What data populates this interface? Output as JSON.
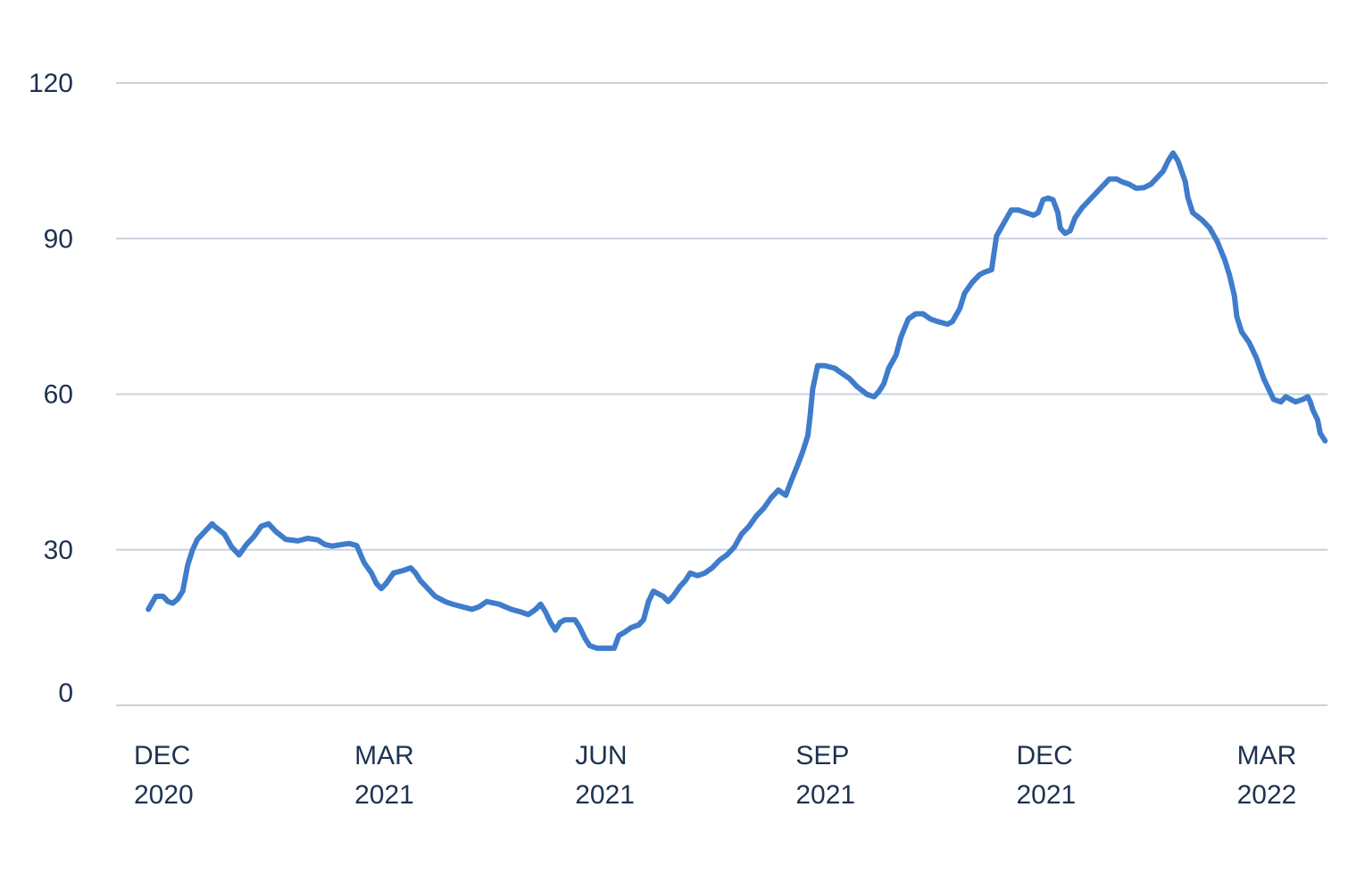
{
  "chart_data": {
    "type": "line",
    "title": "",
    "xlabel": "",
    "ylabel": "",
    "ylim": [
      0,
      120
    ],
    "yticks": [
      0,
      30,
      60,
      90,
      120
    ],
    "grid": true,
    "xticks": [
      {
        "x": 0,
        "line1": "DEC",
        "line2": "2020"
      },
      {
        "x": 90,
        "line1": "MAR",
        "line2": "2021"
      },
      {
        "x": 180,
        "line1": "JUN",
        "line2": "2021"
      },
      {
        "x": 270,
        "line1": "SEP",
        "line2": "2021"
      },
      {
        "x": 360,
        "line1": "DEC",
        "line2": "2021"
      },
      {
        "x": 450,
        "line1": "MAR",
        "line2": "2022"
      }
    ],
    "xlim": [
      0,
      484
    ],
    "series": [
      {
        "color": "#3f7ccb",
        "points": [
          [
            3,
            18.5
          ],
          [
            6,
            21
          ],
          [
            9,
            21
          ],
          [
            11,
            20
          ],
          [
            13,
            19.7
          ],
          [
            15,
            20.5
          ],
          [
            17,
            22
          ],
          [
            19,
            27
          ],
          [
            21,
            30
          ],
          [
            23,
            32
          ],
          [
            26,
            33.5
          ],
          [
            29,
            35
          ],
          [
            30,
            34.5
          ],
          [
            34,
            33
          ],
          [
            37,
            30.5
          ],
          [
            40,
            29
          ],
          [
            43,
            31
          ],
          [
            46,
            32.5
          ],
          [
            49,
            34.5
          ],
          [
            52,
            35
          ],
          [
            55,
            33.5
          ],
          [
            59,
            32
          ],
          [
            64,
            31.7
          ],
          [
            68,
            32.2
          ],
          [
            72,
            31.9
          ],
          [
            75,
            31
          ],
          [
            78,
            30.7
          ],
          [
            82,
            31
          ],
          [
            85,
            31.2
          ],
          [
            88,
            30.8
          ],
          [
            91,
            27.5
          ],
          [
            94,
            25.5
          ],
          [
            96,
            23.5
          ],
          [
            98,
            22.5
          ],
          [
            100,
            23.5
          ],
          [
            103,
            25.5
          ],
          [
            107,
            26
          ],
          [
            110,
            26.5
          ],
          [
            112,
            25.5
          ],
          [
            114,
            24
          ],
          [
            117,
            22.5
          ],
          [
            120,
            21
          ],
          [
            124,
            20
          ],
          [
            127,
            19.5
          ],
          [
            131,
            19
          ],
          [
            135,
            18.5
          ],
          [
            138,
            19
          ],
          [
            141,
            20
          ],
          [
            146,
            19.5
          ],
          [
            151,
            18.5
          ],
          [
            155,
            18
          ],
          [
            158,
            17.5
          ],
          [
            161,
            18.5
          ],
          [
            163,
            19.5
          ],
          [
            165,
            18
          ],
          [
            167,
            16
          ],
          [
            169,
            14.5
          ],
          [
            171,
            16
          ],
          [
            173,
            16.5
          ],
          [
            177,
            16.5
          ],
          [
            179,
            15
          ],
          [
            181,
            13
          ],
          [
            183,
            11.5
          ],
          [
            186,
            11
          ],
          [
            190,
            11
          ],
          [
            193,
            11
          ],
          [
            195,
            13.5
          ],
          [
            197,
            14
          ],
          [
            200,
            15
          ],
          [
            203,
            15.5
          ],
          [
            205,
            16.5
          ],
          [
            207,
            20
          ],
          [
            209,
            22
          ],
          [
            211,
            21.5
          ],
          [
            213,
            21
          ],
          [
            215,
            20
          ],
          [
            217,
            21
          ],
          [
            220,
            23
          ],
          [
            222,
            24
          ],
          [
            224,
            25.5
          ],
          [
            227,
            25
          ],
          [
            230,
            25.5
          ],
          [
            233,
            26.5
          ],
          [
            236,
            28
          ],
          [
            239,
            29
          ],
          [
            242,
            30.5
          ],
          [
            245,
            33
          ],
          [
            248,
            34.5
          ],
          [
            251,
            36.5
          ],
          [
            254,
            38
          ],
          [
            257,
            40
          ],
          [
            260,
            41.5
          ],
          [
            263,
            40.5
          ],
          [
            265,
            43
          ],
          [
            268,
            46.5
          ],
          [
            270,
            49
          ],
          [
            272,
            52
          ],
          [
            273,
            56
          ],
          [
            274,
            61
          ],
          [
            276,
            65.5
          ],
          [
            279,
            65.5
          ],
          [
            283,
            65
          ],
          [
            286,
            64
          ],
          [
            289,
            63
          ],
          [
            292,
            61.5
          ],
          [
            296,
            60
          ],
          [
            299,
            59.5
          ],
          [
            301,
            60.5
          ],
          [
            303,
            62
          ],
          [
            305,
            65
          ],
          [
            308,
            67.5
          ],
          [
            310,
            71
          ],
          [
            313,
            74.5
          ],
          [
            316,
            75.5
          ],
          [
            319,
            75.5
          ],
          [
            322,
            74.5
          ],
          [
            325,
            74
          ],
          [
            329,
            73.5
          ],
          [
            331,
            74
          ],
          [
            334,
            76.5
          ],
          [
            336,
            79.5
          ],
          [
            339,
            81.5
          ],
          [
            342,
            83
          ],
          [
            344,
            83.5
          ],
          [
            347,
            84
          ],
          [
            349,
            90.5
          ],
          [
            352,
            93
          ],
          [
            355,
            95.5
          ],
          [
            358,
            95.5
          ],
          [
            361,
            95
          ],
          [
            364,
            94.5
          ],
          [
            366,
            95
          ],
          [
            368,
            97.5
          ],
          [
            370,
            97.8
          ],
          [
            372,
            97.5
          ],
          [
            374,
            95
          ],
          [
            375,
            92
          ],
          [
            377,
            91
          ],
          [
            379,
            91.5
          ],
          [
            381,
            94
          ],
          [
            384,
            96
          ],
          [
            387,
            97.5
          ],
          [
            390,
            99
          ],
          [
            393,
            100.5
          ],
          [
            395,
            101.5
          ],
          [
            398,
            101.5
          ],
          [
            400,
            101
          ],
          [
            403,
            100.5
          ],
          [
            406,
            99.7
          ],
          [
            409,
            99.8
          ],
          [
            412,
            100.5
          ],
          [
            415,
            102
          ],
          [
            417,
            103
          ],
          [
            419,
            105
          ],
          [
            421,
            106.5
          ],
          [
            423,
            105
          ],
          [
            426,
            101
          ],
          [
            427,
            98
          ],
          [
            429,
            95
          ],
          [
            433,
            93.5
          ],
          [
            436,
            92
          ],
          [
            439,
            89.5
          ],
          [
            442,
            86
          ],
          [
            444,
            83
          ],
          [
            446,
            79
          ],
          [
            447,
            75
          ],
          [
            449,
            72
          ],
          [
            452,
            70
          ],
          [
            455,
            67
          ],
          [
            458,
            63
          ],
          [
            460,
            61
          ],
          [
            462,
            59
          ],
          [
            465,
            58.5
          ],
          [
            467,
            59.5
          ],
          [
            469,
            59
          ],
          [
            471,
            58.5
          ],
          [
            474,
            59
          ],
          [
            476,
            59.5
          ],
          [
            477,
            58.5
          ],
          [
            478,
            57
          ],
          [
            480,
            55
          ],
          [
            481,
            52.5
          ],
          [
            483,
            51
          ]
        ]
      }
    ]
  }
}
